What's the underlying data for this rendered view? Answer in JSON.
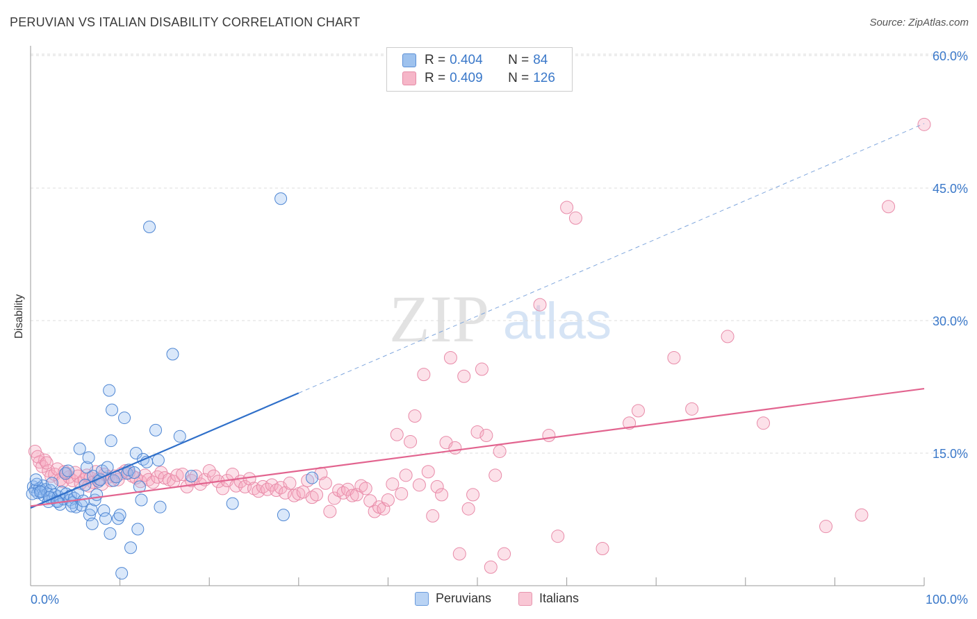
{
  "title": "PERUVIAN VS ITALIAN DISABILITY CORRELATION CHART",
  "source": "Source: ZipAtlas.com",
  "watermark": {
    "zip": "ZIP",
    "atlas": "atlas"
  },
  "legend_stats": [
    {
      "r_label": "R =",
      "r_value": "0.404",
      "n_label": "N =",
      "n_value": "84",
      "color": "#9ec2ee",
      "border": "#5b8fd6"
    },
    {
      "r_label": "R =",
      "r_value": "0.409",
      "n_label": "N =",
      "n_value": "126",
      "color": "#f6b6c8",
      "border": "#e58aa6"
    }
  ],
  "bottom_legend": [
    {
      "label": "Peruvians",
      "color": "#b9d3f4",
      "border": "#6a9bdc"
    },
    {
      "label": "Italians",
      "color": "#f9c7d5",
      "border": "#e795ae"
    }
  ],
  "colors": {
    "blue_line": "#2f6fc9",
    "pink_line": "#e2648f",
    "grid": "#dddddd",
    "axis_text": "#3a78c9"
  },
  "chart_data": {
    "type": "scatter",
    "title": "PERUVIAN VS ITALIAN DISABILITY CORRELATION CHART",
    "xlabel": "",
    "ylabel": "Disability",
    "x_tick_labels": [
      "0.0%",
      "100.0%"
    ],
    "y_tick_labels": [
      "15.0%",
      "30.0%",
      "45.0%",
      "60.0%"
    ],
    "y_ticks": [
      15,
      30,
      45,
      60
    ],
    "xlim": [
      0,
      100
    ],
    "ylim": [
      0,
      60
    ],
    "grid": true,
    "legend_position": "top-center",
    "series": [
      {
        "name": "Peruvians",
        "R": 0.404,
        "N": 84,
        "trend": {
          "x0": 0,
          "y0": 8.8,
          "x1": 30,
          "y1": 21.8,
          "dashed_to_x": 100,
          "dashed_to_y": 52.3
        },
        "points": [
          [
            0.3,
            11.2
          ],
          [
            0.5,
            10.8
          ],
          [
            0.7,
            11.5
          ],
          [
            0.8,
            10.5
          ],
          [
            1.0,
            11.0
          ],
          [
            1.2,
            10.7
          ],
          [
            1.4,
            11.3
          ],
          [
            1.5,
            10.2
          ],
          [
            1.7,
            10.9
          ],
          [
            1.9,
            10.4
          ],
          [
            2.0,
            9.5
          ],
          [
            2.2,
            10.8
          ],
          [
            2.4,
            11.6
          ],
          [
            2.5,
            9.9
          ],
          [
            2.7,
            10.3
          ],
          [
            2.9,
            9.6
          ],
          [
            3.1,
            10.1
          ],
          [
            3.3,
            9.2
          ],
          [
            3.5,
            10.6
          ],
          [
            3.7,
            9.8
          ],
          [
            3.9,
            12.7
          ],
          [
            4.0,
            10.4
          ],
          [
            4.2,
            13.0
          ],
          [
            4.4,
            9.7
          ],
          [
            4.5,
            10.2
          ],
          [
            4.7,
            9.4
          ],
          [
            4.9,
            9.9
          ],
          [
            5.1,
            8.9
          ],
          [
            5.3,
            10.5
          ],
          [
            5.5,
            15.5
          ],
          [
            5.7,
            9.1
          ],
          [
            5.9,
            9.6
          ],
          [
            6.1,
            11.4
          ],
          [
            6.3,
            13.4
          ],
          [
            6.5,
            14.5
          ],
          [
            6.6,
            8.0
          ],
          [
            6.8,
            8.6
          ],
          [
            6.9,
            7.0
          ],
          [
            7.0,
            12.4
          ],
          [
            7.2,
            9.7
          ],
          [
            7.4,
            10.3
          ],
          [
            7.6,
            11.8
          ],
          [
            7.8,
            12.0
          ],
          [
            8.0,
            13.0
          ],
          [
            8.2,
            8.5
          ],
          [
            8.4,
            7.6
          ],
          [
            8.6,
            13.4
          ],
          [
            8.8,
            22.1
          ],
          [
            8.9,
            5.9
          ],
          [
            9.0,
            16.4
          ],
          [
            9.1,
            19.9
          ],
          [
            9.3,
            11.9
          ],
          [
            9.6,
            12.3
          ],
          [
            9.8,
            7.6
          ],
          [
            10.0,
            8.0
          ],
          [
            10.2,
            1.4
          ],
          [
            10.5,
            19.0
          ],
          [
            10.8,
            12.7
          ],
          [
            11.0,
            13.1
          ],
          [
            11.2,
            4.3
          ],
          [
            11.6,
            12.8
          ],
          [
            11.8,
            15.0
          ],
          [
            12.0,
            6.4
          ],
          [
            12.2,
            11.2
          ],
          [
            12.4,
            9.7
          ],
          [
            12.6,
            14.3
          ],
          [
            13.0,
            14.0
          ],
          [
            13.3,
            40.6
          ],
          [
            14.0,
            17.6
          ],
          [
            14.3,
            14.2
          ],
          [
            14.5,
            8.9
          ],
          [
            15.9,
            26.2
          ],
          [
            16.7,
            16.9
          ],
          [
            18.0,
            12.4
          ],
          [
            22.6,
            9.3
          ],
          [
            28.0,
            43.8
          ],
          [
            28.3,
            8.0
          ],
          [
            31.5,
            12.2
          ],
          [
            0.2,
            10.4
          ],
          [
            0.6,
            12.0
          ],
          [
            1.1,
            10.6
          ],
          [
            2.1,
            10.0
          ],
          [
            3.0,
            9.5
          ],
          [
            4.6,
            9.0
          ]
        ]
      },
      {
        "name": "Italians",
        "R": 0.409,
        "N": 126,
        "trend": {
          "x0": 0,
          "y0": 9.0,
          "x1": 100,
          "y1": 22.3
        },
        "points": [
          [
            0.5,
            15.2
          ],
          [
            1.0,
            14.0
          ],
          [
            1.3,
            13.5
          ],
          [
            1.6,
            14.2
          ],
          [
            2.0,
            13.0
          ],
          [
            2.3,
            12.4
          ],
          [
            2.7,
            12.6
          ],
          [
            3.0,
            13.2
          ],
          [
            3.3,
            12.0
          ],
          [
            3.6,
            11.8
          ],
          [
            4.0,
            12.7
          ],
          [
            4.3,
            12.3
          ],
          [
            4.7,
            11.9
          ],
          [
            5.0,
            12.8
          ],
          [
            5.3,
            12.4
          ],
          [
            5.6,
            11.6
          ],
          [
            6.0,
            12.0
          ],
          [
            6.3,
            12.5
          ],
          [
            6.7,
            12.2
          ],
          [
            7.0,
            11.7
          ],
          [
            7.3,
            12.9
          ],
          [
            7.7,
            12.1
          ],
          [
            8.0,
            11.5
          ],
          [
            8.3,
            12.6
          ],
          [
            8.7,
            12.3
          ],
          [
            9.0,
            11.9
          ],
          [
            9.4,
            12.4
          ],
          [
            9.8,
            12.0
          ],
          [
            10.2,
            12.7
          ],
          [
            10.6,
            13.0
          ],
          [
            11.0,
            12.8
          ],
          [
            11.4,
            12.4
          ],
          [
            11.8,
            12.2
          ],
          [
            12.3,
            11.8
          ],
          [
            12.8,
            12.5
          ],
          [
            13.2,
            12.0
          ],
          [
            13.7,
            11.7
          ],
          [
            14.2,
            12.3
          ],
          [
            14.6,
            12.8
          ],
          [
            15.0,
            12.2
          ],
          [
            15.5,
            12.0
          ],
          [
            16.0,
            11.8
          ],
          [
            16.4,
            12.5
          ],
          [
            17.0,
            12.6
          ],
          [
            17.5,
            11.2
          ],
          [
            18.0,
            11.9
          ],
          [
            18.5,
            12.4
          ],
          [
            19.0,
            11.5
          ],
          [
            19.5,
            12.0
          ],
          [
            20.0,
            13.0
          ],
          [
            20.5,
            12.4
          ],
          [
            21.0,
            11.8
          ],
          [
            21.5,
            11.0
          ],
          [
            22.0,
            11.9
          ],
          [
            22.6,
            12.6
          ],
          [
            23.0,
            11.3
          ],
          [
            23.5,
            11.8
          ],
          [
            24.0,
            11.2
          ],
          [
            24.5,
            12.1
          ],
          [
            25.0,
            11.0
          ],
          [
            25.5,
            10.7
          ],
          [
            26.0,
            11.2
          ],
          [
            26.5,
            10.9
          ],
          [
            27.0,
            11.4
          ],
          [
            27.5,
            10.8
          ],
          [
            28.0,
            11.1
          ],
          [
            28.5,
            10.5
          ],
          [
            29.0,
            11.6
          ],
          [
            29.5,
            10.2
          ],
          [
            30.0,
            10.4
          ],
          [
            30.5,
            10.6
          ],
          [
            31.0,
            11.9
          ],
          [
            31.5,
            10.0
          ],
          [
            32.0,
            10.3
          ],
          [
            32.5,
            12.7
          ],
          [
            33.0,
            11.6
          ],
          [
            33.5,
            8.4
          ],
          [
            34.0,
            9.9
          ],
          [
            34.5,
            10.8
          ],
          [
            35.0,
            10.5
          ],
          [
            35.5,
            10.9
          ],
          [
            36.0,
            10.2
          ],
          [
            36.5,
            10.3
          ],
          [
            37.0,
            11.3
          ],
          [
            37.5,
            11.0
          ],
          [
            38.0,
            9.6
          ],
          [
            38.5,
            8.4
          ],
          [
            39.0,
            8.9
          ],
          [
            39.5,
            8.7
          ],
          [
            40.0,
            9.7
          ],
          [
            40.5,
            11.5
          ],
          [
            41.0,
            17.1
          ],
          [
            41.5,
            10.4
          ],
          [
            42.0,
            12.5
          ],
          [
            42.5,
            16.3
          ],
          [
            43.0,
            19.2
          ],
          [
            43.5,
            11.4
          ],
          [
            44.0,
            23.9
          ],
          [
            44.5,
            12.9
          ],
          [
            45.0,
            7.9
          ],
          [
            45.5,
            11.2
          ],
          [
            46.0,
            10.3
          ],
          [
            46.5,
            16.2
          ],
          [
            47.0,
            25.8
          ],
          [
            47.5,
            15.6
          ],
          [
            48.0,
            3.6
          ],
          [
            48.5,
            23.7
          ],
          [
            49.0,
            8.7
          ],
          [
            49.5,
            10.3
          ],
          [
            50.0,
            17.4
          ],
          [
            50.5,
            24.5
          ],
          [
            51.0,
            17.0
          ],
          [
            51.5,
            2.1
          ],
          [
            52.0,
            12.5
          ],
          [
            52.5,
            15.2
          ],
          [
            53.0,
            3.6
          ],
          [
            57.0,
            31.8
          ],
          [
            58.0,
            17.0
          ],
          [
            59.0,
            5.6
          ],
          [
            60.0,
            42.8
          ],
          [
            61.0,
            41.6
          ],
          [
            64.0,
            4.2
          ],
          [
            67.0,
            18.4
          ],
          [
            68.0,
            19.8
          ],
          [
            72.0,
            25.8
          ],
          [
            74.0,
            20.0
          ],
          [
            78.0,
            28.2
          ],
          [
            82.0,
            18.4
          ],
          [
            89.0,
            6.7
          ],
          [
            93.0,
            8.0
          ],
          [
            96.0,
            42.9
          ],
          [
            100.0,
            52.2
          ],
          [
            0.8,
            14.6
          ],
          [
            1.8,
            13.9
          ],
          [
            3.8,
            12.9
          ],
          [
            6.5,
            11.3
          ]
        ]
      }
    ]
  }
}
